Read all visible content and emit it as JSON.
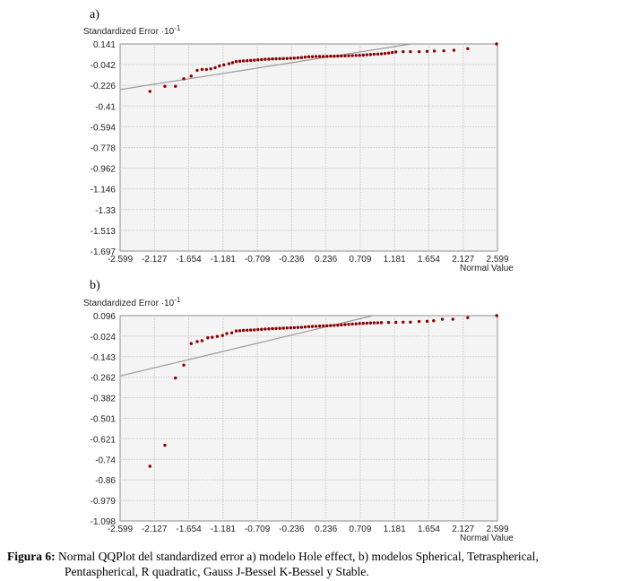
{
  "chart_data": [
    {
      "type": "scatter",
      "panel_label": "a)",
      "ylabel": "Standardized Error ·10",
      "ylabel_exp": "-1",
      "xlabel": "Normal Value",
      "x_ticks": [
        "-2.599",
        "-2.127",
        "-1.654",
        "-1.181",
        "-0.709",
        "-0.236",
        "0.236",
        "0.709",
        "1.181",
        "1.654",
        "2.127",
        "2.599"
      ],
      "y_ticks": [
        "0.141",
        "-0.042",
        "-0.226",
        "-0.41",
        "-0.594",
        "-0.778",
        "-0.962",
        "-1.146",
        "-1.33",
        "-1.513",
        "-1.697"
      ],
      "xlim": [
        -2.599,
        2.599
      ],
      "ylim": [
        -1.697,
        0.141
      ],
      "grid": true,
      "reference_line": {
        "intercept_at_xmin": -0.264,
        "slope": 0.101
      },
      "points": [
        [
          -2.188,
          -0.28
        ],
        [
          -1.982,
          -0.235
        ],
        [
          -1.837,
          -0.235
        ],
        [
          -1.722,
          -0.168
        ],
        [
          -1.62,
          -0.144
        ],
        [
          -1.537,
          -0.093
        ],
        [
          -1.47,
          -0.085
        ],
        [
          -1.41,
          -0.085
        ],
        [
          -1.35,
          -0.08
        ],
        [
          -1.29,
          -0.07
        ],
        [
          -1.23,
          -0.055
        ],
        [
          -1.17,
          -0.045
        ],
        [
          -1.1,
          -0.035
        ],
        [
          -1.05,
          -0.025
        ],
        [
          -1.0,
          -0.015
        ],
        [
          -0.95,
          -0.012
        ],
        [
          -0.9,
          -0.01
        ],
        [
          -0.85,
          -0.008
        ],
        [
          -0.8,
          -0.005
        ],
        [
          -0.75,
          -0.003
        ],
        [
          -0.7,
          0.0
        ],
        [
          -0.65,
          0.002
        ],
        [
          -0.6,
          0.005
        ],
        [
          -0.55,
          0.006
        ],
        [
          -0.5,
          0.008
        ],
        [
          -0.45,
          0.009
        ],
        [
          -0.4,
          0.01
        ],
        [
          -0.35,
          0.011
        ],
        [
          -0.3,
          0.012
        ],
        [
          -0.25,
          0.014
        ],
        [
          -0.2,
          0.015
        ],
        [
          -0.15,
          0.018
        ],
        [
          -0.1,
          0.02
        ],
        [
          -0.05,
          0.024
        ],
        [
          0.0,
          0.027
        ],
        [
          0.05,
          0.028
        ],
        [
          0.1,
          0.03
        ],
        [
          0.15,
          0.03
        ],
        [
          0.2,
          0.03
        ],
        [
          0.25,
          0.031
        ],
        [
          0.3,
          0.032
        ],
        [
          0.35,
          0.032
        ],
        [
          0.4,
          0.033
        ],
        [
          0.45,
          0.034
        ],
        [
          0.5,
          0.035
        ],
        [
          0.55,
          0.036
        ],
        [
          0.6,
          0.038
        ],
        [
          0.65,
          0.039
        ],
        [
          0.7,
          0.04
        ],
        [
          0.75,
          0.042
        ],
        [
          0.8,
          0.045
        ],
        [
          0.85,
          0.047
        ],
        [
          0.9,
          0.05
        ],
        [
          0.95,
          0.051
        ],
        [
          1.0,
          0.053
        ],
        [
          1.05,
          0.056
        ],
        [
          1.1,
          0.06
        ],
        [
          1.15,
          0.065
        ],
        [
          1.2,
          0.07
        ],
        [
          1.3,
          0.072
        ],
        [
          1.4,
          0.072
        ],
        [
          1.52,
          0.072
        ],
        [
          1.63,
          0.075
        ],
        [
          1.73,
          0.078
        ],
        [
          1.86,
          0.08
        ],
        [
          2.0,
          0.085
        ],
        [
          2.19,
          0.099
        ],
        [
          2.587,
          0.141
        ]
      ]
    },
    {
      "type": "scatter",
      "panel_label": "b)",
      "ylabel": "Standardized Error ·10",
      "ylabel_exp": "-1",
      "xlabel": "Normal Value",
      "x_ticks": [
        "-2.599",
        "-2.127",
        "-1.654",
        "-1.181",
        "-0.709",
        "-0.236",
        "0.236",
        "0.709",
        "1.181",
        "1.654",
        "2.127",
        "2.599"
      ],
      "y_ticks": [
        "0.096",
        "-0.024",
        "-0.143",
        "-0.262",
        "-0.382",
        "-0.501",
        "-0.621",
        "-0.74",
        "-0.86",
        "-0.979",
        "-1.098"
      ],
      "xlim": [
        -2.599,
        2.599
      ],
      "ylim": [
        -1.098,
        0.096
      ],
      "grid": true,
      "reference_line": {
        "intercept_at_xmin": -0.255,
        "slope": 0.1007
      },
      "points": [
        [
          -2.188,
          -0.78
        ],
        [
          -1.982,
          -0.658
        ],
        [
          -1.837,
          -0.267
        ],
        [
          -1.722,
          -0.192
        ],
        [
          -1.62,
          -0.067
        ],
        [
          -1.537,
          -0.055
        ],
        [
          -1.47,
          -0.05
        ],
        [
          -1.39,
          -0.033
        ],
        [
          -1.33,
          -0.03
        ],
        [
          -1.26,
          -0.025
        ],
        [
          -1.188,
          -0.02
        ],
        [
          -1.13,
          -0.008
        ],
        [
          -1.06,
          -0.004
        ],
        [
          -1.0,
          0.007
        ],
        [
          -0.95,
          0.008
        ],
        [
          -0.9,
          0.01
        ],
        [
          -0.85,
          0.011
        ],
        [
          -0.8,
          0.012
        ],
        [
          -0.75,
          0.013
        ],
        [
          -0.7,
          0.015
        ],
        [
          -0.65,
          0.016
        ],
        [
          -0.6,
          0.018
        ],
        [
          -0.55,
          0.019
        ],
        [
          -0.5,
          0.02
        ],
        [
          -0.45,
          0.021
        ],
        [
          -0.4,
          0.022
        ],
        [
          -0.35,
          0.023
        ],
        [
          -0.3,
          0.024
        ],
        [
          -0.25,
          0.025
        ],
        [
          -0.2,
          0.026
        ],
        [
          -0.15,
          0.027
        ],
        [
          -0.1,
          0.028
        ],
        [
          -0.05,
          0.03
        ],
        [
          0.0,
          0.032
        ],
        [
          0.05,
          0.033
        ],
        [
          0.1,
          0.034
        ],
        [
          0.15,
          0.035
        ],
        [
          0.2,
          0.036
        ],
        [
          0.25,
          0.037
        ],
        [
          0.3,
          0.038
        ],
        [
          0.35,
          0.039
        ],
        [
          0.4,
          0.04
        ],
        [
          0.45,
          0.042
        ],
        [
          0.5,
          0.044
        ],
        [
          0.55,
          0.045
        ],
        [
          0.6,
          0.047
        ],
        [
          0.65,
          0.048
        ],
        [
          0.7,
          0.05
        ],
        [
          0.75,
          0.051
        ],
        [
          0.8,
          0.052
        ],
        [
          0.85,
          0.053
        ],
        [
          0.9,
          0.054
        ],
        [
          0.95,
          0.054
        ],
        [
          1.0,
          0.055
        ],
        [
          1.1,
          0.056
        ],
        [
          1.2,
          0.057
        ],
        [
          1.3,
          0.058
        ],
        [
          1.4,
          0.058
        ],
        [
          1.52,
          0.062
        ],
        [
          1.63,
          0.063
        ],
        [
          1.72,
          0.066
        ],
        [
          1.84,
          0.075
        ],
        [
          1.985,
          0.075
        ],
        [
          2.19,
          0.084
        ],
        [
          2.59,
          0.096
        ]
      ]
    }
  ],
  "caption": {
    "label": "Figura 6:",
    "line1": "Normal QQPlot del standardized error a) modelo Hole effect, b) modelos Spherical, Tetraspherical,",
    "line2": "Pentaspherical, R quadratic, Gauss J-Bessel K-Bessel y Stable."
  },
  "colors": {
    "point": "#8b0000",
    "plot_bg": "#f4f4f4",
    "grid": "#cfcfcf",
    "ref_line": "#9a9a9a"
  }
}
